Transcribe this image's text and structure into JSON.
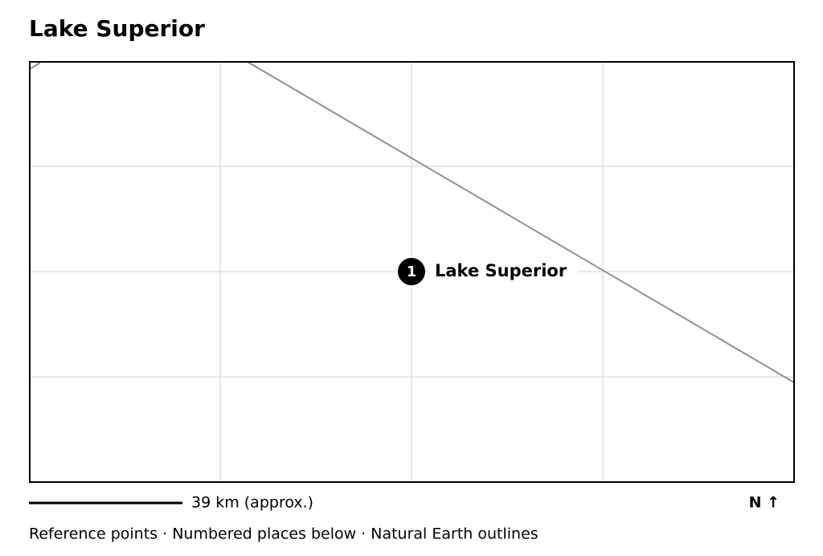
{
  "header": {
    "title": "Lake Superior"
  },
  "map": {
    "markers": [
      {
        "number": "1",
        "label": "Lake Superior"
      }
    ]
  },
  "scale": {
    "label": "39 km (approx.)"
  },
  "north": "N ↑",
  "footer": "Reference points · Numbered places below · Natural Earth outlines"
}
